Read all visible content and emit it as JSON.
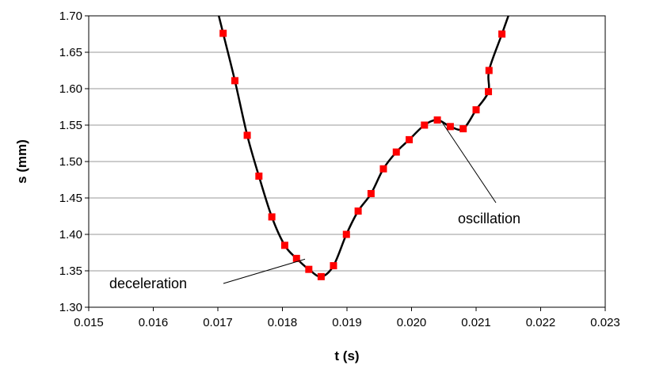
{
  "chart_data": {
    "type": "line",
    "xlabel": "t (s)",
    "ylabel": "s (mm)",
    "xlim": [
      0.015,
      0.023
    ],
    "ylim": [
      1.3,
      1.7
    ],
    "xticks": [
      "0.015",
      "0.016",
      "0.017",
      "0.018",
      "0.019",
      "0.020",
      "0.021",
      "0.022",
      "0.023"
    ],
    "yticks": [
      "1.30",
      "1.35",
      "1.40",
      "1.45",
      "1.50",
      "1.55",
      "1.60",
      "1.65",
      "1.70"
    ],
    "grid": "horizontal",
    "line_color": "#000000",
    "marker_color": "#ff0000",
    "series": [
      {
        "x": [
          0.017082,
          0.017264,
          0.017455,
          0.017636,
          0.017836,
          0.018036,
          0.018218,
          0.018409,
          0.0186,
          0.018791,
          0.018991,
          0.019173,
          0.019373,
          0.019564,
          0.019764,
          0.019964,
          0.0202,
          0.0204,
          0.0206,
          0.0208,
          0.021,
          0.021191,
          0.0212,
          0.0214
        ],
        "y": [
          1.676,
          1.611,
          1.536,
          1.48,
          1.424,
          1.385,
          1.367,
          1.352,
          1.342,
          1.357,
          1.4,
          1.432,
          1.456,
          1.49,
          1.513,
          1.53,
          1.55,
          1.557,
          1.548,
          1.545,
          1.571,
          1.596,
          1.625,
          1.675
        ]
      }
    ],
    "annotations": [
      {
        "text": "deceleration",
        "x": 0.01835,
        "y": 1.366
      },
      {
        "text": "oscillation",
        "x": 0.02048,
        "y": 1.553
      }
    ]
  }
}
